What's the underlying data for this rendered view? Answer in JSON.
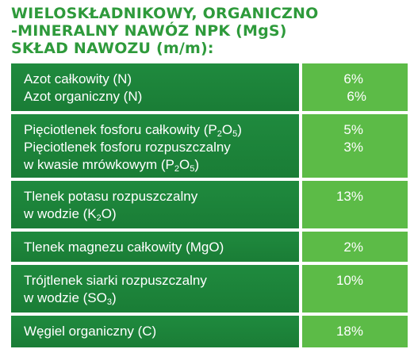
{
  "header": {
    "line1": "WIELOSKŁADNIKOWY, ORGANICZNO",
    "line2": "-MINERALNY NAWÓZ NPK (MgS)",
    "line3": "SKŁAD NAWOZU (m/m):"
  },
  "rows": [
    {
      "labels": [
        "Azot całkowity (N)",
        "Azot organiczny (N)"
      ],
      "values": [
        "6%",
        "6%"
      ]
    },
    {
      "labels": [
        "Pięciotlenek fosforu całkowity (P",
        "2",
        "O",
        "5",
        ")",
        "Pięciotlenek fosforu rozpuszczalny",
        "w kwasie mrówkowym (P",
        "2",
        "O",
        "5",
        ")"
      ],
      "values": [
        "5%",
        "3%"
      ]
    },
    {
      "labels": [
        "Tlenek potasu rozpuszczalny",
        "w wodzie (K",
        "2",
        "O)"
      ],
      "values": [
        "13%"
      ]
    },
    {
      "labels": [
        "Tlenek magnezu całkowity (MgO)"
      ],
      "values": [
        "2%"
      ]
    },
    {
      "labels": [
        "Trójtlenek siarki rozpuszczalny",
        "w wodzie (SO",
        "3",
        ")"
      ],
      "values": [
        "10%"
      ]
    },
    {
      "labels": [
        "Węgiel organiczny (C)"
      ],
      "values": [
        "18%"
      ]
    }
  ],
  "colors": {
    "header_green": "#2e9a3b",
    "label_green": "#1f8a3e",
    "value_green": "#5cbb47"
  }
}
